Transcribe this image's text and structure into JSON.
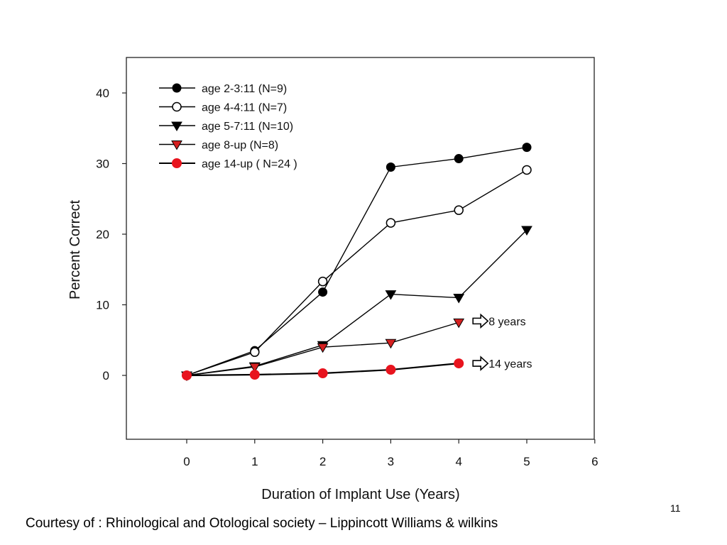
{
  "chart_data": {
    "type": "line",
    "xlabel": "Duration of Implant Use (Years)",
    "ylabel": "Percent Correct",
    "xlim": [
      -0.9,
      6
    ],
    "ylim": [
      -9,
      45
    ],
    "xticks": [
      "0",
      "1",
      "2",
      "3",
      "4",
      "5",
      "6"
    ],
    "yticks": [
      "0",
      "10",
      "20",
      "30",
      "40"
    ],
    "grid": false,
    "legend": "top-left",
    "series": [
      {
        "name": "age 2-3:11 (N=9)",
        "marker": "filled-circle",
        "color": "#000000",
        "x": [
          0,
          1,
          2,
          3,
          4,
          5
        ],
        "y": [
          0,
          3.5,
          11.8,
          29.5,
          30.7,
          32.3
        ]
      },
      {
        "name": "age 4-4:11 (N=7)",
        "marker": "open-circle",
        "color": "#000000",
        "x": [
          0,
          1,
          2,
          3,
          4,
          5
        ],
        "y": [
          0,
          3.3,
          13.3,
          21.6,
          23.4,
          29.1
        ]
      },
      {
        "name": "age 5-7:11 (N=10)",
        "marker": "filled-triangle-down",
        "color": "#000000",
        "x": [
          0,
          1,
          2,
          3,
          4,
          5
        ],
        "y": [
          0,
          1.3,
          4.3,
          11.5,
          11.0,
          20.6
        ]
      },
      {
        "name": "age 8-up (N=8)",
        "marker": "red-triangle-down",
        "color": "#d42020",
        "x": [
          0,
          1,
          2,
          3,
          4
        ],
        "y": [
          0,
          1.2,
          4.0,
          4.6,
          7.5
        ]
      },
      {
        "name": "age 14-up ( N=24 )",
        "marker": "red-circle",
        "color": "#e8141e",
        "x": [
          0,
          1,
          2,
          3,
          4
        ],
        "y": [
          0,
          0.1,
          0.3,
          0.8,
          1.7
        ]
      }
    ],
    "annotations": [
      {
        "text": "8 years",
        "x": 4,
        "y": 7.7,
        "icon": "open-arrow-right-icon"
      },
      {
        "text": "14 years",
        "x": 4,
        "y": 1.7,
        "icon": "open-arrow-right-icon"
      }
    ]
  },
  "footer": {
    "credit": "Courtesy of : Rhinological and Otological society – Lippincott Williams & wilkins",
    "page_number": "11"
  }
}
